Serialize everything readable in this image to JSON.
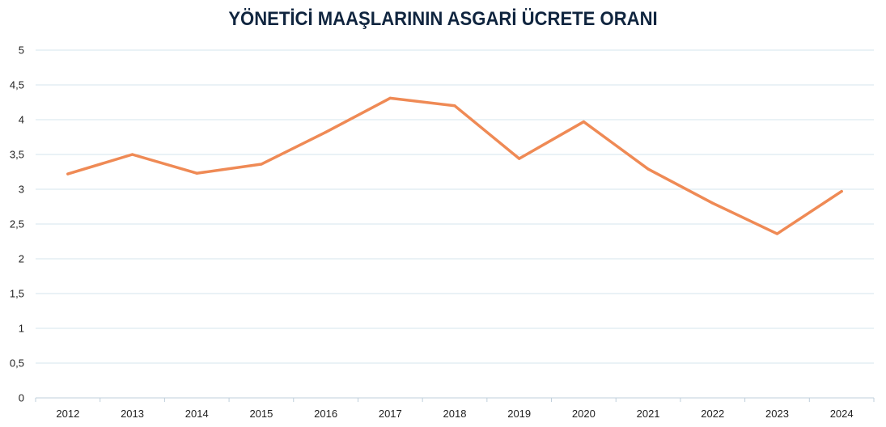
{
  "chart_data": {
    "type": "line",
    "title": "YÖNETİCİ MAAŞLARININ ASGARİ ÜCRETE ORANI",
    "xlabel": "",
    "ylabel": "",
    "categories": [
      "2012",
      "2013",
      "2014",
      "2015",
      "2016",
      "2017",
      "2018",
      "2019",
      "2020",
      "2021",
      "2022",
      "2023",
      "2024"
    ],
    "series": [
      {
        "values": [
          3.22,
          3.5,
          3.23,
          3.36,
          3.82,
          4.31,
          4.2,
          3.44,
          3.97,
          3.29,
          2.8,
          2.36,
          2.97
        ]
      }
    ],
    "ylim": [
      0,
      5
    ],
    "yticks": [
      0,
      0.5,
      1,
      1.5,
      2,
      2.5,
      3,
      3.5,
      4,
      4.5,
      5
    ],
    "ytick_labels": [
      "0",
      "0,5",
      "1",
      "1,5",
      "2",
      "2,5",
      "3",
      "3,5",
      "4",
      "4,5",
      "5"
    ],
    "grid": true,
    "legend": "none",
    "line_color": "#ef8a55",
    "grid_color": "#d6e4ee",
    "title_color": "#10253f"
  }
}
